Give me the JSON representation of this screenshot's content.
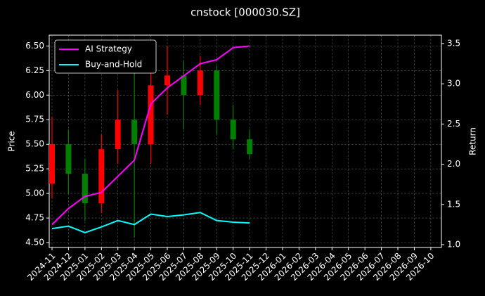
{
  "chart_data": {
    "type": "candlestick",
    "title": "cnstock [000030.SZ]",
    "y_label": "Price",
    "y2_label": "Return",
    "categories": [
      "2024-11",
      "2024-12",
      "2025-01",
      "2025-02",
      "2025-03",
      "2025-04",
      "2025-05",
      "2025-06",
      "2025-07",
      "2025-08",
      "2025-09",
      "2025-10",
      "2025-11",
      "2025-12",
      "2026-01",
      "2026-02",
      "2026-03",
      "2026-04",
      "2026-05",
      "2026-06",
      "2026-07",
      "2026-08",
      "2026-09",
      "2026-10"
    ],
    "ohlc": {
      "open": [
        5.1,
        5.5,
        5.2,
        4.9,
        5.45,
        5.75,
        5.5,
        6.1,
        6.2,
        6.0,
        6.25,
        5.75,
        5.55,
        null,
        null,
        null,
        null,
        null,
        null,
        null,
        null,
        null,
        null,
        null
      ],
      "high": [
        5.78,
        5.65,
        5.35,
        5.6,
        6.05,
        6.25,
        6.4,
        6.5,
        6.35,
        6.4,
        6.3,
        5.9,
        5.65,
        null,
        null,
        null,
        null,
        null,
        null,
        null,
        null,
        null,
        null,
        null
      ],
      "low": [
        4.95,
        5.0,
        4.72,
        4.8,
        5.3,
        4.55,
        5.3,
        5.8,
        5.65,
        5.9,
        5.6,
        5.45,
        5.35,
        null,
        null,
        null,
        null,
        null,
        null,
        null,
        null,
        null,
        null,
        null
      ],
      "close": [
        5.5,
        5.2,
        4.9,
        5.45,
        5.75,
        5.5,
        6.1,
        6.2,
        6.0,
        6.25,
        5.75,
        5.55,
        5.4,
        null,
        null,
        null,
        null,
        null,
        null,
        null,
        null,
        null,
        null,
        null
      ]
    },
    "up_color": "#ff0000",
    "down_color": "#008000",
    "series": [
      {
        "name": "AI Strategy",
        "color": "#ff00ff",
        "axis": "y2",
        "values": [
          1.25,
          1.45,
          1.6,
          1.65,
          1.85,
          2.05,
          2.75,
          2.95,
          3.1,
          3.25,
          3.3,
          3.45,
          3.47,
          null,
          null,
          null,
          null,
          null,
          null,
          null,
          null,
          null,
          null,
          null
        ]
      },
      {
        "name": "Buy-and-Hold",
        "color": "#00ffff",
        "axis": "y2",
        "values": [
          1.2,
          1.23,
          1.15,
          1.22,
          1.3,
          1.25,
          1.38,
          1.35,
          1.37,
          1.4,
          1.3,
          1.28,
          1.27,
          null,
          null,
          null,
          null,
          null,
          null,
          null,
          null,
          null,
          null,
          null
        ]
      }
    ],
    "ylim": [
      4.45,
      6.61
    ],
    "yticks": [
      {
        "value": 4.5,
        "label": "4.50"
      },
      4.75,
      {
        "value": 5.0,
        "label": "5.00"
      },
      5.25,
      {
        "value": 5.5,
        "label": "5.50"
      },
      5.75,
      {
        "value": 6.0,
        "label": "6.00"
      },
      6.25,
      {
        "value": 6.5,
        "label": "6.50"
      }
    ],
    "y2lim": [
      0.965,
      3.605
    ],
    "y2ticks": [
      {
        "value": 1.0,
        "label": "1.0"
      },
      1.5,
      {
        "value": 2.0,
        "label": "2.0"
      },
      2.5,
      {
        "value": 3.0,
        "label": "3.0"
      },
      3.5
    ],
    "grid": true,
    "legend": "upper left"
  }
}
